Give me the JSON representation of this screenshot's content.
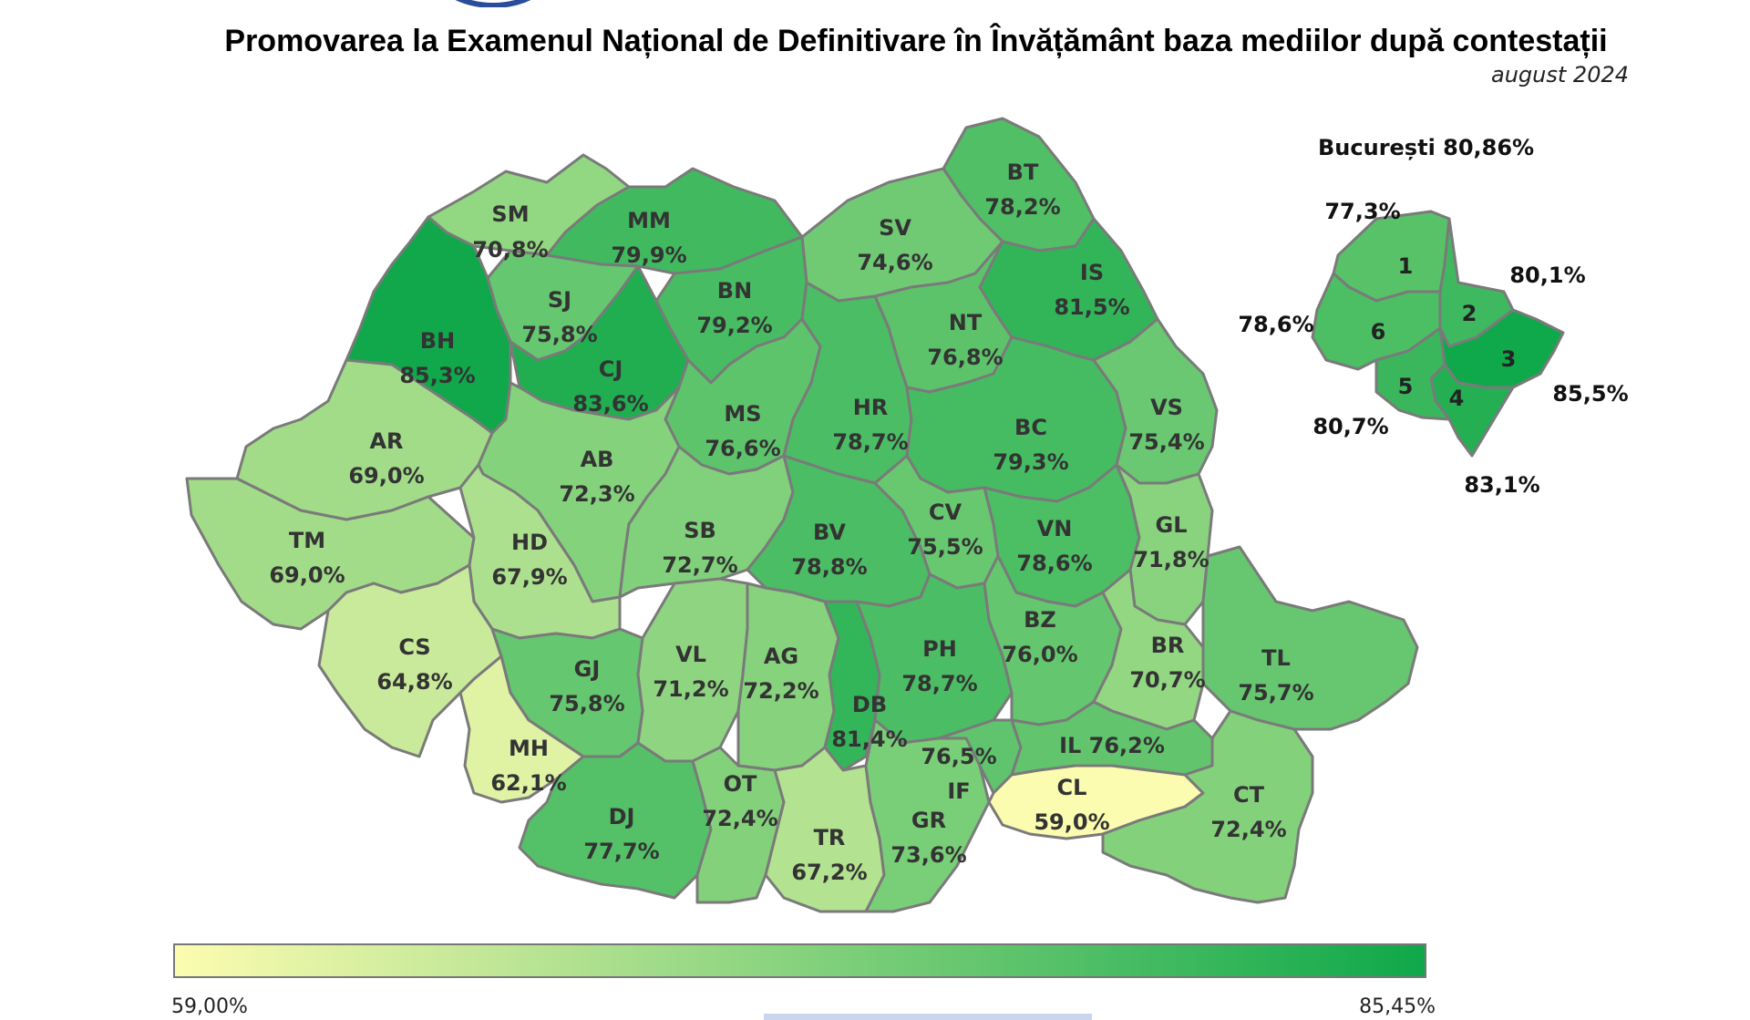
{
  "header": {
    "title": "Promovarea la Examenul Național de Definitivare în Învățământ baza mediilor după contestații",
    "subtitle": "august 2024"
  },
  "legend": {
    "min_label": "59,00%",
    "max_label": "85,45%",
    "min_color": "#fcfcb0",
    "max_color": "#0fa84a"
  },
  "bucharest": {
    "title": "București 80,86%",
    "sectors": [
      {
        "num": "1",
        "value": "77,3%",
        "pct": 77.3
      },
      {
        "num": "2",
        "value": "80,1%",
        "pct": 80.1
      },
      {
        "num": "3",
        "value": "85,5%",
        "pct": 85.5
      },
      {
        "num": "4",
        "value": "83,1%",
        "pct": 83.1
      },
      {
        "num": "5",
        "value": "80,7%",
        "pct": 80.7
      },
      {
        "num": "6",
        "value": "78,6%",
        "pct": 78.6
      }
    ]
  },
  "counties": [
    {
      "code": "SM",
      "value": "70,8%",
      "pct": 70.8
    },
    {
      "code": "MM",
      "value": "79,9%",
      "pct": 79.9
    },
    {
      "code": "BT",
      "value": "78,2%",
      "pct": 78.2
    },
    {
      "code": "SV",
      "value": "74,6%",
      "pct": 74.6
    },
    {
      "code": "IS",
      "value": "81,5%",
      "pct": 81.5
    },
    {
      "code": "SJ",
      "value": "75,8%",
      "pct": 75.8
    },
    {
      "code": "BN",
      "value": "79,2%",
      "pct": 79.2
    },
    {
      "code": "BH",
      "value": "85,3%",
      "pct": 85.3
    },
    {
      "code": "CJ",
      "value": "83,6%",
      "pct": 83.6
    },
    {
      "code": "NT",
      "value": "76,8%",
      "pct": 76.8
    },
    {
      "code": "MS",
      "value": "76,6%",
      "pct": 76.6
    },
    {
      "code": "HR",
      "value": "78,7%",
      "pct": 78.7
    },
    {
      "code": "BC",
      "value": "79,3%",
      "pct": 79.3
    },
    {
      "code": "VS",
      "value": "75,4%",
      "pct": 75.4
    },
    {
      "code": "AR",
      "value": "69,0%",
      "pct": 69.0
    },
    {
      "code": "AB",
      "value": "72,3%",
      "pct": 72.3
    },
    {
      "code": "TM",
      "value": "69,0%",
      "pct": 69.0
    },
    {
      "code": "HD",
      "value": "67,9%",
      "pct": 67.9
    },
    {
      "code": "SB",
      "value": "72,7%",
      "pct": 72.7
    },
    {
      "code": "BV",
      "value": "78,8%",
      "pct": 78.8
    },
    {
      "code": "CV",
      "value": "75,5%",
      "pct": 75.5
    },
    {
      "code": "VN",
      "value": "78,6%",
      "pct": 78.6
    },
    {
      "code": "GL",
      "value": "71,8%",
      "pct": 71.8
    },
    {
      "code": "CS",
      "value": "64,8%",
      "pct": 64.8
    },
    {
      "code": "GJ",
      "value": "75,8%",
      "pct": 75.8
    },
    {
      "code": "VL",
      "value": "71,2%",
      "pct": 71.2
    },
    {
      "code": "AG",
      "value": "72,2%",
      "pct": 72.2
    },
    {
      "code": "DB",
      "value": "81,4%",
      "pct": 81.4
    },
    {
      "code": "PH",
      "value": "78,7%",
      "pct": 78.7
    },
    {
      "code": "BZ",
      "value": "76,0%",
      "pct": 76.0
    },
    {
      "code": "BR",
      "value": "70,7%",
      "pct": 70.7
    },
    {
      "code": "TL",
      "value": "75,7%",
      "pct": 75.7
    },
    {
      "code": "MH",
      "value": "62,1%",
      "pct": 62.1
    },
    {
      "code": "DJ",
      "value": "77,7%",
      "pct": 77.7
    },
    {
      "code": "OT",
      "value": "72,4%",
      "pct": 72.4
    },
    {
      "code": "TR",
      "value": "67,2%",
      "pct": 67.2
    },
    {
      "code": "GR",
      "value": "73,6%",
      "pct": 73.6
    },
    {
      "code": "IF",
      "value": "76,5%",
      "pct": 76.5
    },
    {
      "code": "IL",
      "value": "IL 76,2%",
      "pct": 76.2
    },
    {
      "code": "CL",
      "value": "59,0%",
      "pct": 59.0
    },
    {
      "code": "CT",
      "value": "72,4%",
      "pct": 72.4
    }
  ]
}
